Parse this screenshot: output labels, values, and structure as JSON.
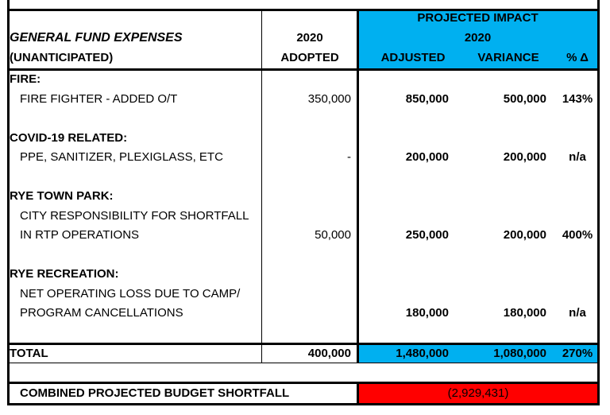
{
  "header": {
    "title": "GENERAL FUND EXPENSES",
    "subtitle": "(UNANTICIPATED)",
    "adopted_year": "2020",
    "adopted_label": "ADOPTED",
    "projected_title": "PROJECTED IMPACT",
    "projected_year": "2020",
    "columns": [
      "ADJUSTED",
      "VARIANCE",
      "% Δ"
    ]
  },
  "sections": [
    {
      "heading": "FIRE:",
      "items": [
        {
          "lines": [
            "FIRE FIGHTER - ADDED O/T"
          ],
          "adopted": "350,000",
          "adjusted": "850,000",
          "variance": "500,000",
          "pct": "143%"
        }
      ]
    },
    {
      "heading": "COVID-19 RELATED:",
      "items": [
        {
          "lines": [
            "PPE, SANITIZER, PLEXIGLASS, ETC"
          ],
          "adopted": "-",
          "adjusted": "200,000",
          "variance": "200,000",
          "pct": "n/a"
        }
      ]
    },
    {
      "heading": "RYE TOWN PARK:",
      "items": [
        {
          "lines": [
            "CITY RESPONSIBILITY FOR SHORTFALL",
            "IN RTP OPERATIONS"
          ],
          "adopted": "50,000",
          "adjusted": "250,000",
          "variance": "200,000",
          "pct": "400%"
        }
      ]
    },
    {
      "heading": "RYE RECREATION:",
      "items": [
        {
          "lines": [
            "NET OPERATING LOSS DUE TO CAMP/",
            "PROGRAM CANCELLATIONS"
          ],
          "adopted": "",
          "adjusted": "180,000",
          "variance": "180,000",
          "pct": "n/a"
        }
      ]
    }
  ],
  "total": {
    "label": "TOTAL",
    "adopted": "400,000",
    "adjusted": "1,480,000",
    "variance": "1,080,000",
    "pct": "270%"
  },
  "shortfall": {
    "label": "COMBINED PROJECTED BUDGET SHORTFALL",
    "value": "(2,929,431)"
  }
}
